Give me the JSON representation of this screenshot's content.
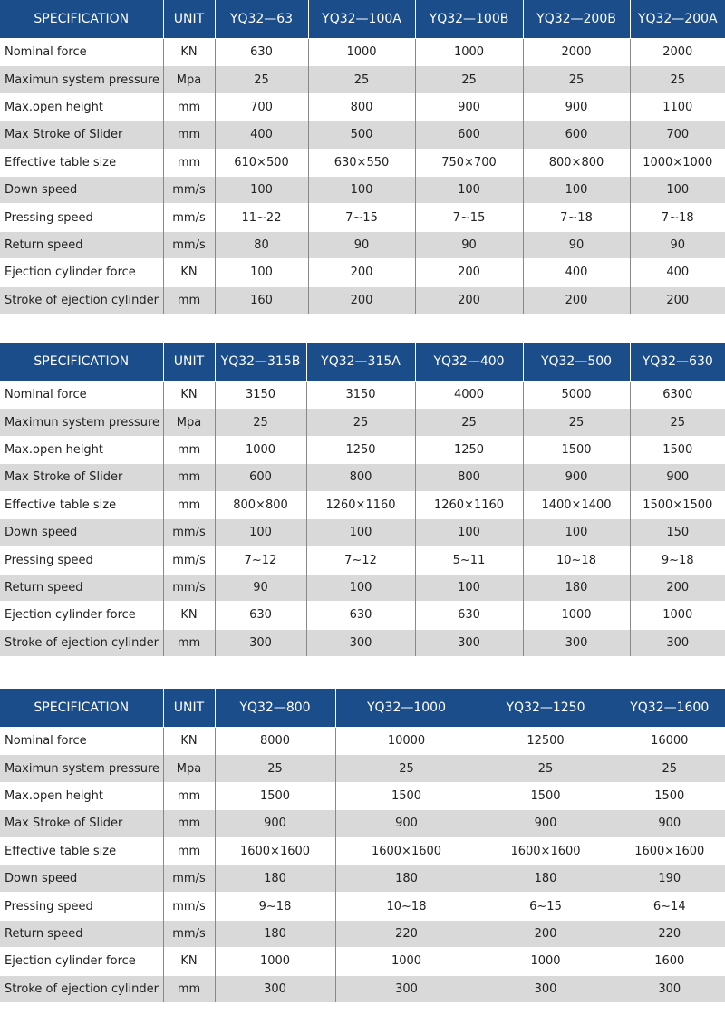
{
  "tables": [
    {
      "header": [
        "SPECIFICATION",
        "UNIT",
        "YQ32—63",
        "YQ32—100A",
        "YQ32—100B",
        "YQ32—200B",
        "YQ32—200A"
      ],
      "rows": [
        [
          "Nominal force",
          "KN",
          "630",
          "1000",
          "1000",
          "2000",
          "2000"
        ],
        [
          "Maximun system pressure",
          "Mpa",
          "25",
          "25",
          "25",
          "25",
          "25"
        ],
        [
          "Max.open height",
          "mm",
          "700",
          "800",
          "900",
          "900",
          "1100"
        ],
        [
          "Max Stroke of Slider",
          "mm",
          "400",
          "500",
          "600",
          "600",
          "700"
        ],
        [
          "Effective table size",
          "mm",
          "610×500",
          "630×550",
          "750×700",
          "800×800",
          "1000×1000"
        ],
        [
          "Down speed",
          "mm/s",
          "100",
          "100",
          "100",
          "100",
          "100"
        ],
        [
          "Pressing speed",
          "mm/s",
          "11~22",
          "7~15",
          "7~15",
          "7~18",
          "7~18"
        ],
        [
          "Return speed",
          "mm/s",
          "80",
          "90",
          "90",
          "90",
          "90"
        ],
        [
          "Ejection cylinder force",
          "KN",
          "100",
          "200",
          "200",
          "400",
          "400"
        ],
        [
          "Stroke of ejection cylinder",
          "mm",
          "160",
          "200",
          "200",
          "200",
          "200"
        ]
      ]
    },
    {
      "header": [
        "SPECIFICATION",
        "UNIT",
        "YQ32—315B",
        "YQ32—315A",
        "YQ32—400",
        "YQ32—500",
        "YQ32—630"
      ],
      "rows": [
        [
          "Nominal force",
          "KN",
          "3150",
          "3150",
          "4000",
          "5000",
          "6300"
        ],
        [
          "Maximun system pressure",
          "Mpa",
          "25",
          "25",
          "25",
          "25",
          "25"
        ],
        [
          "Max.open height",
          "mm",
          "1000",
          "1250",
          "1250",
          "1500",
          "1500"
        ],
        [
          "Max Stroke of Slider",
          "mm",
          "600",
          "800",
          "800",
          "900",
          "900"
        ],
        [
          "Effective table size",
          "mm",
          "800×800",
          "1260×1160",
          "1260×1160",
          "1400×1400",
          "1500×1500"
        ],
        [
          "Down speed",
          "mm/s",
          "100",
          "100",
          "100",
          "100",
          "150"
        ],
        [
          "Pressing speed",
          "mm/s",
          "7~12",
          "7~12",
          "5~11",
          "10~18",
          "9~18"
        ],
        [
          "Return speed",
          "mm/s",
          "90",
          "100",
          "100",
          "180",
          "200"
        ],
        [
          "Ejection cylinder force",
          "KN",
          "630",
          "630",
          "630",
          "1000",
          "1000"
        ],
        [
          "Stroke of ejection cylinder",
          "mm",
          "300",
          "300",
          "300",
          "300",
          "300"
        ]
      ]
    },
    {
      "header": [
        "SPECIFICATION",
        "UNIT",
        "YQ32—800",
        "YQ32—1000",
        "YQ32—1250",
        "YQ32—1600"
      ],
      "rows": [
        [
          "Nominal force",
          "KN",
          "8000",
          "10000",
          "12500",
          "16000"
        ],
        [
          "Maximun system pressure",
          "Mpa",
          "25",
          "25",
          "25",
          "25"
        ],
        [
          "Max.open height",
          "mm",
          "1500",
          "1500",
          "1500",
          "1500"
        ],
        [
          "Max Stroke of Slider",
          "mm",
          "900",
          "900",
          "900",
          "900"
        ],
        [
          "Effective table size",
          "mm",
          "1600×1600",
          "1600×1600",
          "1600×1600",
          "1600×1600"
        ],
        [
          "Down speed",
          "mm/s",
          "180",
          "180",
          "180",
          "190"
        ],
        [
          "Pressing speed",
          "mm/s",
          "9~18",
          "10~18",
          "6~15",
          "6~14"
        ],
        [
          "Return speed",
          "mm/s",
          "180",
          "220",
          "200",
          "220"
        ],
        [
          "Ejection cylinder force",
          "KN",
          "1000",
          "1000",
          "1000",
          "1600"
        ],
        [
          "Stroke of ejection cylinder",
          "mm",
          "300",
          "300",
          "300",
          "300"
        ]
      ]
    }
  ]
}
